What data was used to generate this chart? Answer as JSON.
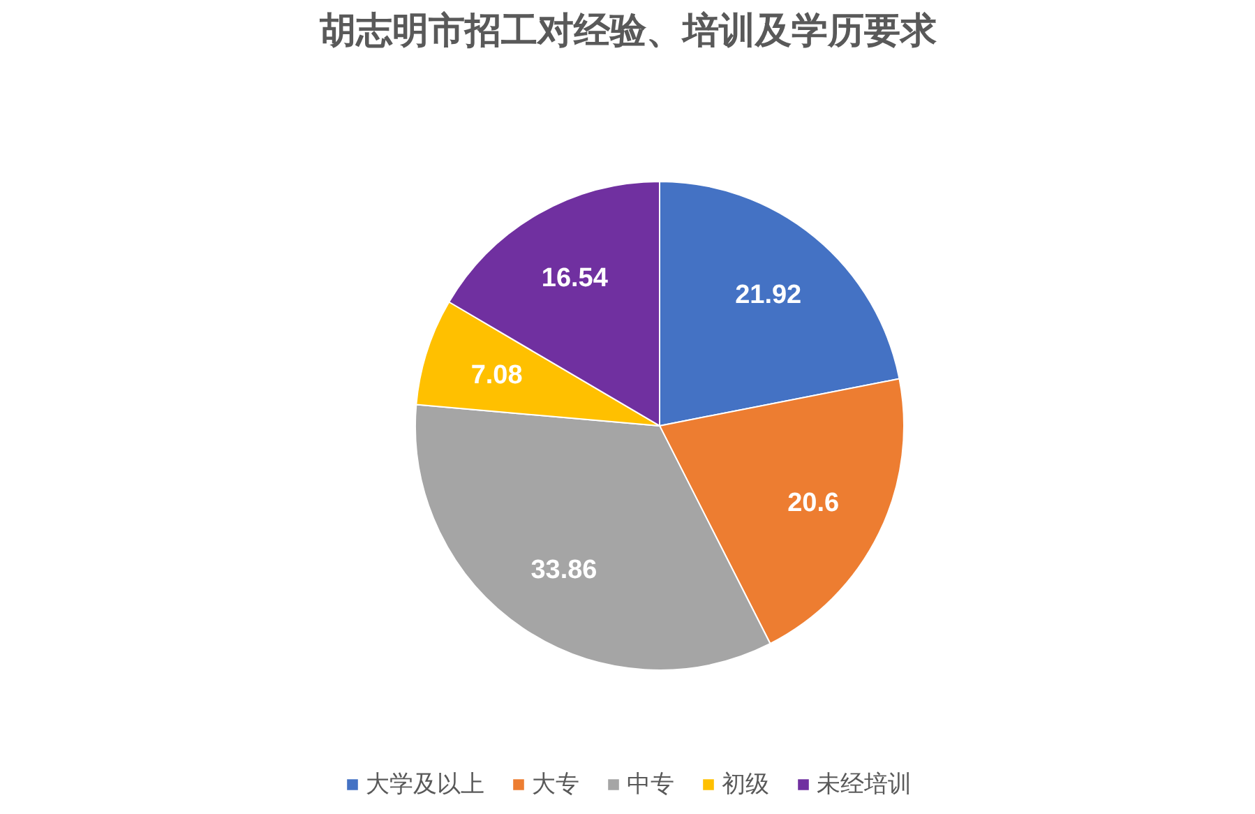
{
  "chart_data": {
    "type": "pie",
    "title": "胡志明市招工对经验、培训及学历要求",
    "categories": [
      "大学及以上",
      "大专",
      "中专",
      "初级",
      "未经培训"
    ],
    "values": [
      21.92,
      20.6,
      33.86,
      7.08,
      16.54
    ],
    "colors": [
      "#4472c4",
      "#ed7d31",
      "#a5a5a5",
      "#ffc000",
      "#7030a0"
    ],
    "data_labels": true,
    "legend": "bottom"
  }
}
